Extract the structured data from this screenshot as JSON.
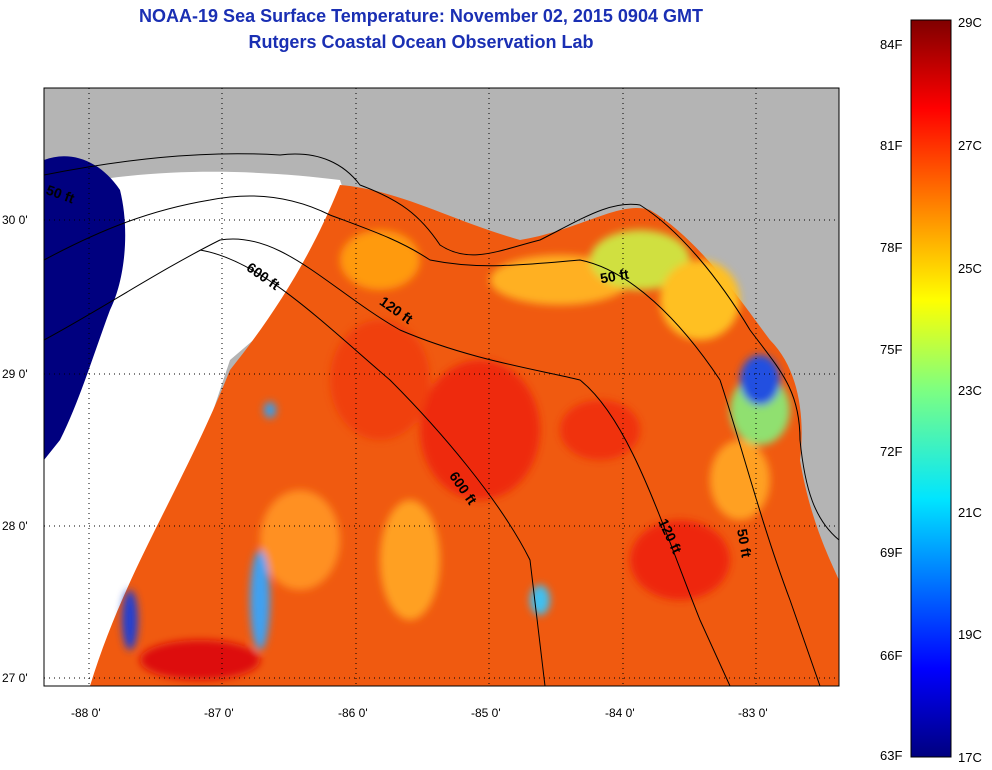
{
  "title": "NOAA-19 Sea Surface Temperature:  November 02, 2015 0904 GMT",
  "subtitle": "Rutgers Coastal Ocean Observation Lab",
  "lat_ticks": [
    "30 0'",
    "29 0'",
    "28 0'",
    "27 0'"
  ],
  "lon_ticks": [
    "-88 0'",
    "-87 0'",
    "-86 0'",
    "-85 0'",
    "-84 0'",
    "-83 0'"
  ],
  "contours": {
    "c50_left": "50 ft",
    "c600_upper": "600 ft",
    "c120_upper": "120 ft",
    "c50_right": "50 ft",
    "c600_lower": "600 ft",
    "c120_lower": "120 ft",
    "c50_lower": "50 ft"
  },
  "colorbar": {
    "fahrenheit": [
      "84F",
      "81F",
      "78F",
      "75F",
      "72F",
      "69F",
      "66F",
      "63F"
    ],
    "celsius": [
      "29C",
      "27C",
      "25C",
      "23C",
      "21C",
      "19C",
      "17C"
    ]
  },
  "colors": {
    "land": "#b4b4b4",
    "clouds": "#ffffff",
    "title": "#1a2fb3",
    "sst_warm": "#f05a10",
    "sst_cold": "#00007f"
  }
}
